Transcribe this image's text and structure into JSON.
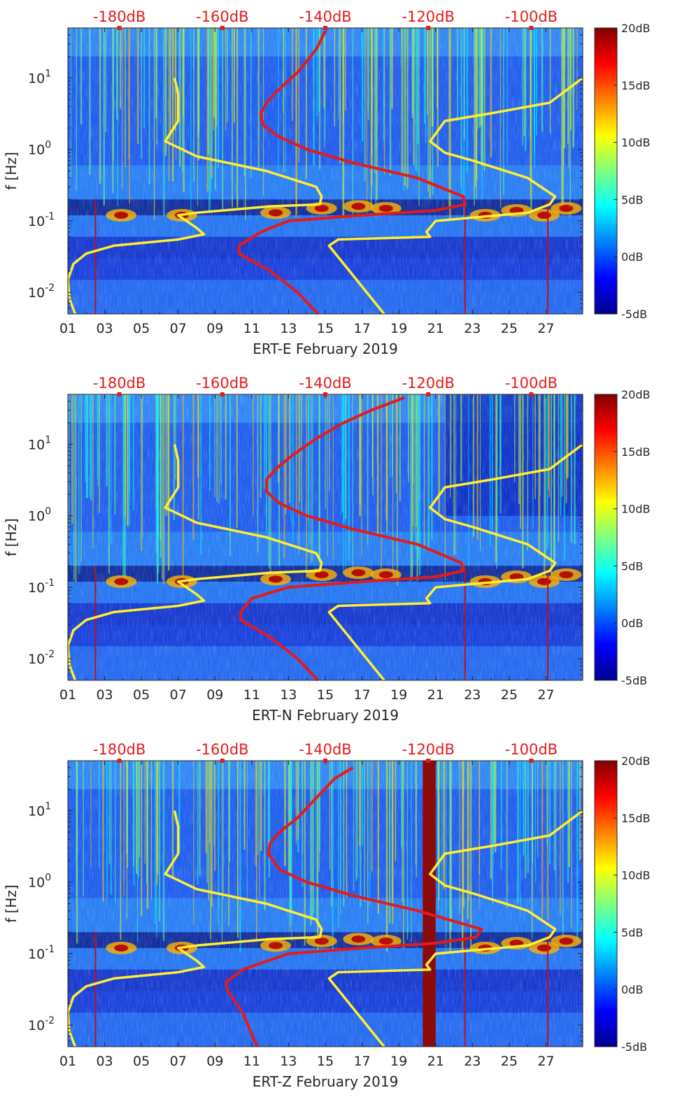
{
  "chart_data": [
    {
      "type": "heatmap",
      "xlabel": "ERT-E February 2019",
      "ylabel": "f [Hz]",
      "x_ticks": [
        "01",
        "03",
        "05",
        "07",
        "09",
        "11",
        "13",
        "15",
        "17",
        "19",
        "21",
        "23",
        "25",
        "27"
      ],
      "x_range_days": [
        1,
        29
      ],
      "y_scale": "log",
      "y_range_hz": [
        0.005,
        50
      ],
      "y_ticks": [
        {
          "value": 0.01,
          "base": "10",
          "exp": "-2"
        },
        {
          "value": 0.1,
          "base": "10",
          "exp": "-1"
        },
        {
          "value": 1,
          "base": "10",
          "exp": "0"
        },
        {
          "value": 10,
          "base": "10",
          "exp": "1"
        }
      ],
      "top_axis_labels": [
        "-180dB",
        "-160dB",
        "-140dB",
        "-120dB",
        "-100dB"
      ],
      "top_axis_range_db": [
        -190,
        -90
      ],
      "colorbar": {
        "labels": [
          "20dB",
          "15dB",
          "10dB",
          "5dB",
          "0dB",
          "-5dB"
        ],
        "range_db": [
          -5,
          20
        ],
        "colormap": "jet"
      },
      "series": [
        {
          "color": "#ffee33",
          "x": [
            6.8,
            7.0,
            7.0,
            6.3,
            8.0,
            11.8,
            14.5,
            14.8,
            14.7,
            12.0,
            8.0,
            7.0,
            8.0,
            8.4,
            7.0,
            3.5,
            2.0,
            1.3,
            1.0,
            1.1,
            1.4
          ],
          "y": [
            10,
            6,
            2.5,
            1.3,
            0.8,
            0.5,
            0.3,
            0.22,
            0.17,
            0.16,
            0.13,
            0.12,
            0.08,
            0.065,
            0.055,
            0.045,
            0.035,
            0.025,
            0.015,
            0.008,
            0.005
          ]
        },
        {
          "color": "#ffee33",
          "x": [
            29.0,
            27.2,
            24.0,
            21.5,
            20.7,
            21.5,
            23.0,
            26.0,
            27.5,
            27.2,
            26.0,
            21.0,
            20.5,
            20.7,
            15.7,
            15.2,
            18.2
          ],
          "y": [
            10,
            4.5,
            3.2,
            2.5,
            1.3,
            0.9,
            0.7,
            0.4,
            0.22,
            0.17,
            0.13,
            0.1,
            0.07,
            0.06,
            0.055,
            0.045,
            0.005
          ]
        },
        {
          "color": "#e31b1b",
          "x": [
            15.0,
            14.5,
            13.5,
            12.5,
            11.8,
            11.5,
            11.6,
            12.5,
            14.0,
            16.5,
            20.0,
            22.5,
            22.6,
            21.0,
            17.0,
            13.0,
            11.5,
            10.3,
            10.3,
            12.0,
            13.5,
            14.6
          ],
          "y": [
            45,
            25,
            12,
            7,
            4.5,
            3.2,
            2.2,
            1.5,
            1.0,
            0.65,
            0.4,
            0.22,
            0.17,
            0.14,
            0.12,
            0.1,
            0.07,
            0.045,
            0.035,
            0.02,
            0.01,
            0.005
          ]
        }
      ]
    },
    {
      "type": "heatmap",
      "xlabel": "ERT-N February 2019",
      "ylabel": "f [Hz]",
      "x_ticks": [
        "01",
        "03",
        "05",
        "07",
        "09",
        "11",
        "13",
        "15",
        "17",
        "19",
        "21",
        "23",
        "25",
        "27"
      ],
      "x_range_days": [
        1,
        29
      ],
      "y_scale": "log",
      "y_range_hz": [
        0.005,
        50
      ],
      "y_ticks": [
        {
          "value": 0.01,
          "base": "10",
          "exp": "-2"
        },
        {
          "value": 0.1,
          "base": "10",
          "exp": "-1"
        },
        {
          "value": 1,
          "base": "10",
          "exp": "0"
        },
        {
          "value": 10,
          "base": "10",
          "exp": "1"
        }
      ],
      "top_axis_labels": [
        "-180dB",
        "-160dB",
        "-140dB",
        "-120dB",
        "-100dB"
      ],
      "top_axis_range_db": [
        -190,
        -90
      ],
      "colorbar": {
        "labels": [
          "20dB",
          "15dB",
          "10dB",
          "5dB",
          "0dB",
          "-5dB"
        ],
        "range_db": [
          -5,
          20
        ],
        "colormap": "jet"
      },
      "series": [
        {
          "color": "#ffee33",
          "x": [
            6.8,
            7.0,
            7.0,
            6.3,
            8.0,
            11.8,
            14.5,
            14.8,
            14.7,
            12.0,
            8.0,
            7.0,
            8.0,
            8.4,
            7.0,
            3.5,
            2.0,
            1.3,
            1.0,
            1.1,
            1.4
          ],
          "y": [
            10,
            6,
            2.5,
            1.3,
            0.8,
            0.5,
            0.3,
            0.22,
            0.17,
            0.16,
            0.13,
            0.12,
            0.08,
            0.065,
            0.055,
            0.045,
            0.035,
            0.025,
            0.015,
            0.008,
            0.005
          ]
        },
        {
          "color": "#ffee33",
          "x": [
            29.0,
            27.2,
            24.0,
            21.5,
            20.7,
            21.5,
            23.0,
            26.0,
            27.5,
            27.2,
            26.0,
            21.0,
            20.5,
            20.7,
            15.7,
            15.2,
            18.2
          ],
          "y": [
            10,
            4.5,
            3.2,
            2.5,
            1.3,
            0.9,
            0.7,
            0.4,
            0.22,
            0.17,
            0.13,
            0.1,
            0.07,
            0.06,
            0.055,
            0.045,
            0.005
          ]
        },
        {
          "color": "#e31b1b",
          "x": [
            19.3,
            17.5,
            16.0,
            14.5,
            13.2,
            12.3,
            11.8,
            11.8,
            12.5,
            14.0,
            16.5,
            20.0,
            22.4,
            22.5,
            21.0,
            17.0,
            13.0,
            11.0,
            10.4,
            10.4,
            12.0,
            13.5,
            14.6
          ],
          "y": [
            45,
            30,
            20,
            12,
            7,
            4.5,
            3.2,
            2.2,
            1.5,
            1.0,
            0.65,
            0.4,
            0.22,
            0.17,
            0.14,
            0.12,
            0.1,
            0.07,
            0.045,
            0.035,
            0.02,
            0.01,
            0.005
          ]
        }
      ]
    },
    {
      "type": "heatmap",
      "xlabel": "ERT-Z February 2019",
      "ylabel": "f [Hz]",
      "x_ticks": [
        "01",
        "03",
        "05",
        "07",
        "09",
        "11",
        "13",
        "15",
        "17",
        "19",
        "21",
        "23",
        "25",
        "27"
      ],
      "x_range_days": [
        1,
        29
      ],
      "y_scale": "log",
      "y_range_hz": [
        0.005,
        50
      ],
      "y_ticks": [
        {
          "value": 0.01,
          "base": "10",
          "exp": "-2"
        },
        {
          "value": 0.1,
          "base": "10",
          "exp": "-1"
        },
        {
          "value": 1,
          "base": "10",
          "exp": "0"
        },
        {
          "value": 10,
          "base": "10",
          "exp": "1"
        }
      ],
      "top_axis_labels": [
        "-180dB",
        "-160dB",
        "-140dB",
        "-120dB",
        "-100dB"
      ],
      "top_axis_range_db": [
        -190,
        -90
      ],
      "colorbar": {
        "labels": [
          "20dB",
          "15dB",
          "10dB",
          "5dB",
          "0dB",
          "-5dB"
        ],
        "range_db": [
          -5,
          20
        ],
        "colormap": "jet"
      },
      "saturated_band_days": [
        20.3,
        21.0
      ],
      "series": [
        {
          "color": "#ffee33",
          "x": [
            6.8,
            7.0,
            7.0,
            6.3,
            8.0,
            11.8,
            14.5,
            14.8,
            14.7,
            12.0,
            8.0,
            7.0,
            8.0,
            8.4,
            7.0,
            3.5,
            2.0,
            1.3,
            1.0,
            1.1,
            1.4
          ],
          "y": [
            10,
            6,
            2.5,
            1.3,
            0.8,
            0.5,
            0.3,
            0.22,
            0.17,
            0.16,
            0.13,
            0.12,
            0.08,
            0.065,
            0.055,
            0.045,
            0.035,
            0.025,
            0.015,
            0.008,
            0.005
          ]
        },
        {
          "color": "#ffee33",
          "x": [
            29.0,
            27.2,
            24.0,
            21.5,
            20.7,
            21.5,
            23.0,
            26.0,
            27.5,
            27.2,
            26.0,
            21.0,
            20.5,
            20.7,
            15.7,
            15.2,
            18.2
          ],
          "y": [
            10,
            4.5,
            3.2,
            2.5,
            1.3,
            0.9,
            0.7,
            0.4,
            0.22,
            0.17,
            0.13,
            0.1,
            0.07,
            0.06,
            0.055,
            0.045,
            0.005
          ]
        },
        {
          "color": "#e31b1b",
          "x": [
            16.5,
            15.5,
            14.5,
            13.5,
            12.5,
            12.0,
            11.9,
            12.5,
            14.0,
            16.5,
            20.0,
            23.5,
            23.2,
            21.0,
            17.0,
            13.0,
            10.5,
            9.6,
            9.7,
            10.5,
            11.3
          ],
          "y": [
            40,
            28,
            15,
            8,
            5,
            3.5,
            2.5,
            1.5,
            1.0,
            0.65,
            0.4,
            0.22,
            0.17,
            0.14,
            0.12,
            0.1,
            0.06,
            0.04,
            0.03,
            0.015,
            0.005
          ]
        }
      ]
    }
  ]
}
